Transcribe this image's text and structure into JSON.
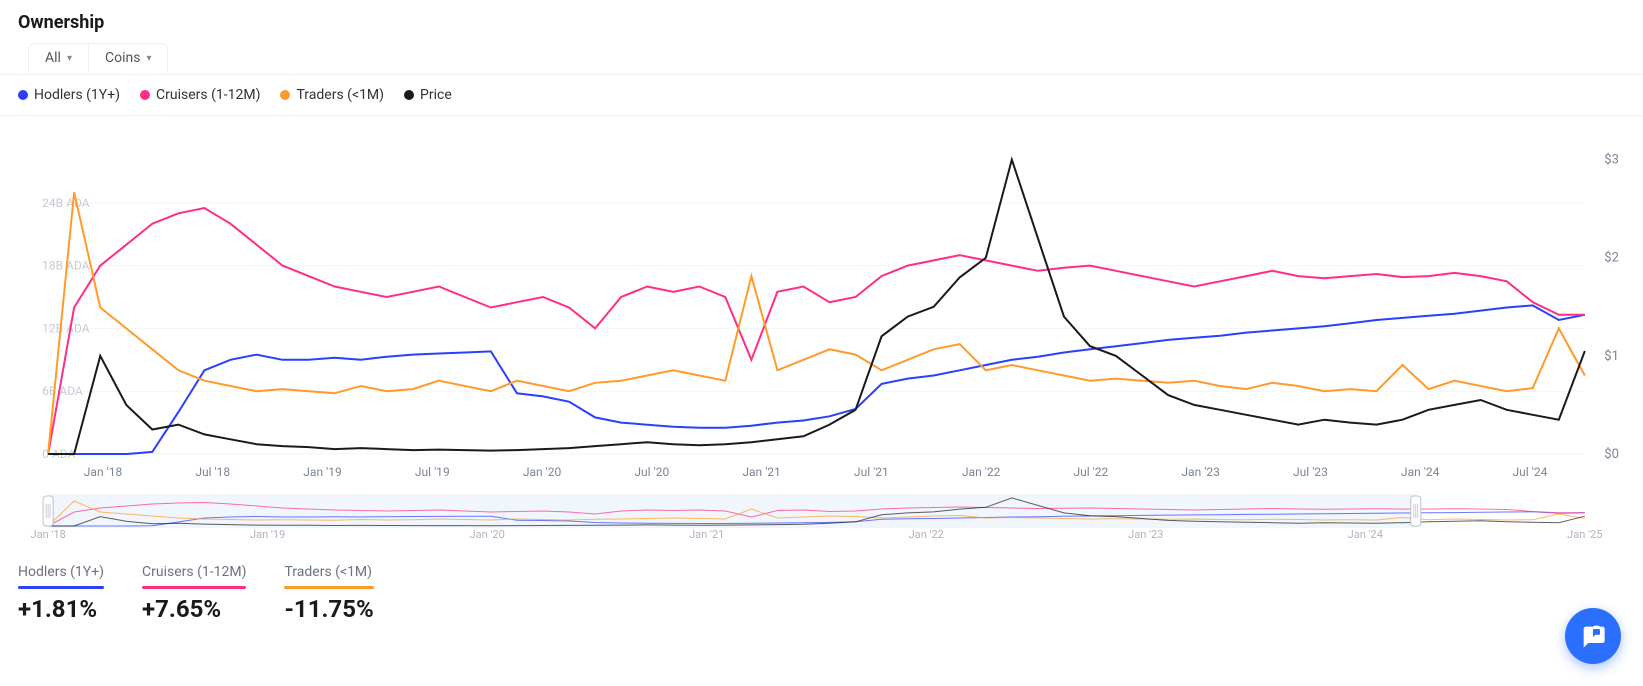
{
  "title": "Ownership",
  "filters": {
    "range": "All",
    "unit": "Coins"
  },
  "legend": [
    {
      "name": "hodlers",
      "label": "Hodlers (1Y+)",
      "color": "#2b3fff"
    },
    {
      "name": "cruisers",
      "label": "Cruisers (1-12M)",
      "color": "#ff2d87"
    },
    {
      "name": "traders",
      "label": "Traders (<1M)",
      "color": "#ff9a2b"
    },
    {
      "name": "price",
      "label": "Price",
      "color": "#1a1a1a"
    }
  ],
  "chart": {
    "type": "line",
    "background_color": "#ffffff",
    "grid_color": "#f4f5f8",
    "line_width": 2,
    "left_axis": {
      "unit": "ADA",
      "ticks": [
        0,
        6,
        12,
        18,
        24
      ],
      "tick_suffix": "B ADA",
      "zero_label": "0 ADA",
      "max": 30,
      "label_color": "#c7cbd4",
      "label_fontsize": 12
    },
    "right_axis": {
      "unit": "$",
      "ticks": [
        0,
        1,
        2,
        3
      ],
      "max": 3.2,
      "label_color": "#7b8494",
      "label_fontsize": 13
    },
    "x_axis": {
      "labels": [
        "Jan '18",
        "Jul '18",
        "Jan '19",
        "Jul '19",
        "Jan '20",
        "Jul '20",
        "Jan '21",
        "Jul '21",
        "Jan '22",
        "Jul '22",
        "Jan '23",
        "Jul '23",
        "Jan '24",
        "Jul '24"
      ],
      "label_color": "#7b8494",
      "label_fontsize": 12
    },
    "series": {
      "hodlers": {
        "axis": "left",
        "color": "#2b3fff",
        "values": [
          0,
          0,
          0,
          0,
          0.2,
          4,
          8,
          9,
          9.5,
          9,
          9,
          9.2,
          9,
          9.3,
          9.5,
          9.6,
          9.7,
          9.8,
          5.8,
          5.5,
          5,
          3.5,
          3,
          2.8,
          2.6,
          2.5,
          2.5,
          2.7,
          3,
          3.2,
          3.6,
          4.3,
          6.7,
          7.2,
          7.5,
          8,
          8.5,
          9,
          9.3,
          9.7,
          10,
          10.3,
          10.6,
          10.9,
          11.1,
          11.3,
          11.6,
          11.8,
          12,
          12.2,
          12.5,
          12.8,
          13,
          13.2,
          13.4,
          13.7,
          14,
          14.2,
          12.8,
          13.3
        ]
      },
      "cruisers": {
        "axis": "left",
        "color": "#ff2d87",
        "values": [
          0,
          14,
          18,
          20,
          22,
          23,
          23.5,
          22,
          20,
          18,
          17,
          16,
          15.5,
          15,
          15.5,
          16,
          15,
          14,
          14.5,
          15,
          14,
          12,
          15,
          16,
          15.5,
          16,
          15,
          9,
          15.5,
          16,
          14.5,
          15,
          17,
          18,
          18.5,
          19,
          18.5,
          18,
          17.5,
          17.8,
          18,
          17.5,
          17,
          16.5,
          16,
          16.5,
          17,
          17.5,
          17,
          16.8,
          17,
          17.2,
          16.9,
          17,
          17.3,
          17,
          16.5,
          14.5,
          13.3,
          13.3
        ]
      },
      "traders": {
        "axis": "left",
        "color": "#ff9a2b",
        "values": [
          0,
          25,
          14,
          12,
          10,
          8,
          7,
          6.5,
          6,
          6.2,
          6,
          5.8,
          6.5,
          6,
          6.2,
          7,
          6.5,
          6,
          7,
          6.5,
          6,
          6.8,
          7,
          7.5,
          8,
          7.5,
          7,
          17,
          8,
          9,
          10,
          9.5,
          8,
          9,
          10,
          10.5,
          8,
          8.5,
          8,
          7.5,
          7,
          7.2,
          7,
          6.8,
          7,
          6.5,
          6.2,
          6.8,
          6.5,
          6,
          6.2,
          6,
          8.5,
          6.2,
          7,
          6.5,
          6,
          6.3,
          12,
          7.5
        ]
      },
      "price": {
        "axis": "right",
        "color": "#1a1a1a",
        "values": [
          0,
          0,
          1.0,
          0.5,
          0.25,
          0.3,
          0.2,
          0.15,
          0.1,
          0.08,
          0.07,
          0.05,
          0.06,
          0.05,
          0.04,
          0.045,
          0.04,
          0.035,
          0.04,
          0.05,
          0.06,
          0.08,
          0.1,
          0.12,
          0.1,
          0.09,
          0.1,
          0.12,
          0.15,
          0.18,
          0.3,
          0.45,
          1.2,
          1.4,
          1.5,
          1.8,
          2.0,
          3.0,
          2.2,
          1.4,
          1.1,
          1.0,
          0.8,
          0.6,
          0.5,
          0.45,
          0.4,
          0.35,
          0.3,
          0.35,
          0.32,
          0.3,
          0.35,
          0.45,
          0.5,
          0.55,
          0.45,
          0.4,
          0.35,
          1.05
        ]
      }
    }
  },
  "brush": {
    "background_color": "#eaf2fb",
    "handle_stroke": "#b9c2d0",
    "selection": [
      0,
      0.89
    ],
    "x_labels": [
      "Jan '18",
      "Jan '19",
      "Jan '20",
      "Jan '21",
      "Jan '22",
      "Jan '23",
      "Jan '24",
      "Jan '25"
    ]
  },
  "stats": [
    {
      "name": "hodlers",
      "label": "Hodlers (1Y+)",
      "rule_color": "#2b3fff",
      "value": "+1.81%"
    },
    {
      "name": "cruisers",
      "label": "Cruisers (1-12M)",
      "rule_color": "#ff2d87",
      "value": "+7.65%"
    },
    {
      "name": "traders",
      "label": "Traders (<1M)",
      "rule_color": "#ff9a2b",
      "value": "-11.75%"
    }
  ],
  "chat": {
    "color": "#2b6fff"
  }
}
